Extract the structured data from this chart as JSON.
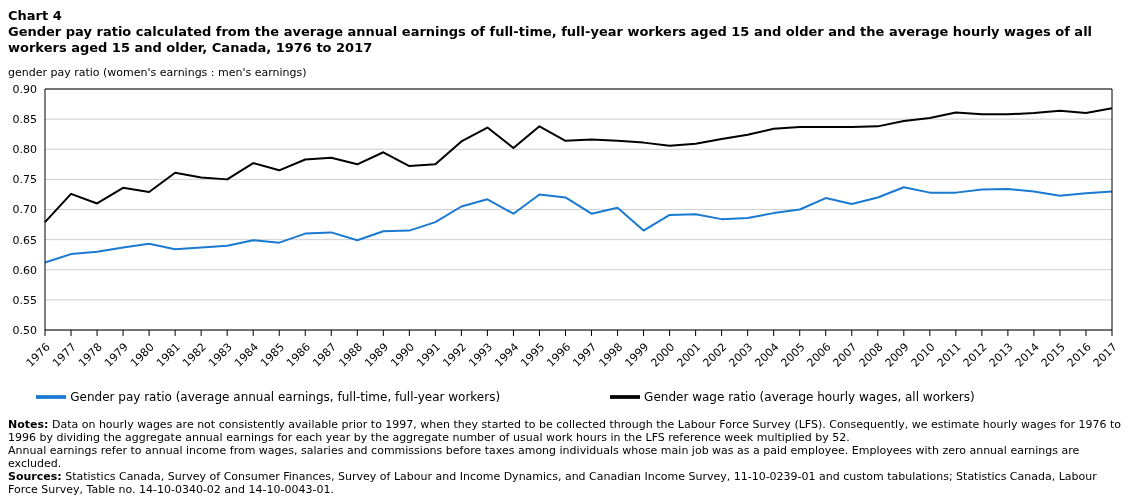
{
  "chart_data": {
    "type": "line",
    "title": "Chart 4",
    "subtitle": "Gender pay ratio calculated from the average annual earnings of full-time, full-year workers aged 15 and older and the average hourly wages of all workers aged 15 and older, Canada, 1976 to 2017",
    "ylabel": "gender pay ratio (women's earnings : men's earnings)",
    "categories": [
      "1976",
      "1977",
      "1978",
      "1979",
      "1980",
      "1981",
      "1982",
      "1983",
      "1984",
      "1985",
      "1986",
      "1987",
      "1988",
      "1989",
      "1990",
      "1991",
      "1992",
      "1993",
      "1994",
      "1995",
      "1996",
      "1997",
      "1998",
      "1999",
      "2000",
      "2001",
      "2002",
      "2003",
      "2004",
      "2005",
      "2006",
      "2007",
      "2008",
      "2009",
      "2010",
      "2011",
      "2012",
      "2013",
      "2014",
      "2015",
      "2016",
      "2017"
    ],
    "series": [
      {
        "name": "Gender pay ratio (average annual earnings, full-time, full-year workers)",
        "color": "#1a7ad1",
        "values": [
          0.612,
          0.626,
          0.63,
          0.637,
          0.643,
          0.634,
          0.637,
          0.64,
          0.649,
          0.645,
          0.66,
          0.662,
          0.649,
          0.664,
          0.665,
          0.679,
          0.705,
          0.717,
          0.693,
          0.725,
          0.72,
          0.693,
          0.703,
          0.665,
          0.691,
          0.692,
          0.684,
          0.686,
          0.694,
          0.7,
          0.719,
          0.709,
          0.72,
          0.737,
          0.728,
          0.728,
          0.733,
          0.734,
          0.73,
          0.723,
          0.727,
          0.73
        ]
      },
      {
        "name": "Gender wage ratio (average hourly wages, all workers)",
        "color": "#000000",
        "values": [
          0.679,
          0.726,
          0.71,
          0.736,
          0.729,
          0.761,
          0.753,
          0.75,
          0.777,
          0.765,
          0.783,
          0.786,
          0.775,
          0.795,
          0.772,
          0.775,
          0.813,
          0.836,
          0.802,
          0.838,
          0.814,
          0.816,
          0.814,
          0.811,
          0.806,
          0.809,
          0.817,
          0.824,
          0.834,
          0.837,
          0.837,
          0.837,
          0.838,
          0.847,
          0.852,
          0.861,
          0.858,
          0.858,
          0.86,
          0.864,
          0.86,
          0.868
        ]
      }
    ],
    "ylim": [
      0.5,
      0.9
    ],
    "yticks": [
      {
        "value": 0.5,
        "label": "0.50"
      },
      {
        "value": 0.55,
        "label": "0.55"
      },
      {
        "value": 0.6,
        "label": "0.60"
      },
      {
        "value": 0.65,
        "label": "0.65"
      },
      {
        "value": 0.7,
        "label": "0.70"
      },
      {
        "value": 0.75,
        "label": "0.75"
      },
      {
        "value": 0.8,
        "label": "0.80"
      },
      {
        "value": 0.85,
        "label": "0.85"
      },
      {
        "value": 0.9,
        "label": "0.90"
      }
    ],
    "grid": "y",
    "legend": "bottom",
    "marker": "none",
    "line_style": "solid",
    "annotations": [
      "Notes: Data on hourly wages are not consistently available prior to 1997, when they started to be collected through the Labour Force Survey (LFS). Consequently, we estimate hourly wages for 1976 to 1996 by dividing the aggregate annual earnings for each year by the aggregate number of usual work hours in the LFS reference week multiplied by 52.",
      "Annual earnings refer to annual income from wages, salaries and commissions before taxes among individuals whose main job was as a paid employee. Employees with zero annual earnings are excluded.",
      "Sources: Statistics Canada, Survey of Consumer Finances, Survey of Labour and Income Dynamics, and Canadian Income Survey, 11-10-0239-01 and custom tabulations; Statistics Canada, Labour Force Survey, Table no. 14-10-0340-02 and 14-10-0043-01."
    ]
  }
}
